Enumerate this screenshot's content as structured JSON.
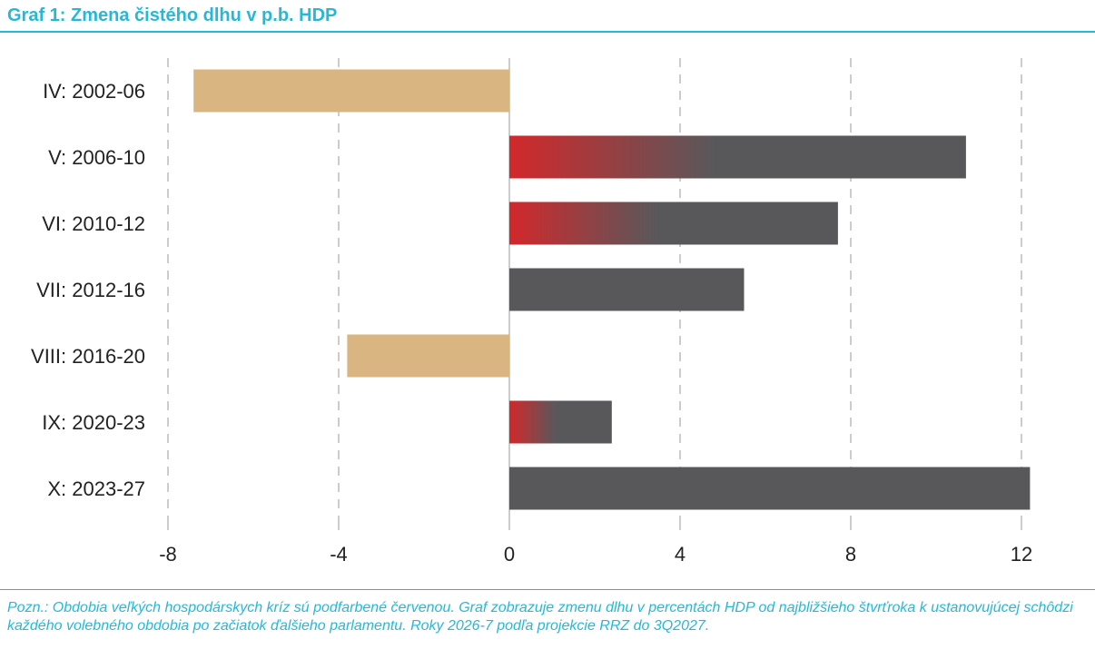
{
  "title": "Graf 1: Zmena čistého dlhu v p.b. HDP",
  "note": "Pozn.: Obdobia veľkých hospodárskych kríz sú podfarbené červenou. Graf zobrazuje zmenu dlhu v percentách HDP od najbližšieho štvrťroka k ustanovujúcej schôdzi každého volebného obdobia po začiatok ďalšieho parlamentu. Roky 2026-7 podľa projekcie RRZ do 3Q2027.",
  "colors": {
    "accent": "#26b8d6",
    "positive": "#58585b",
    "negative": "#d9b581",
    "crisis": "#d2282b",
    "grid": "#cccccc"
  },
  "chart_data": {
    "type": "bar",
    "orientation": "horizontal",
    "title": "Graf 1: Zmena čistého dlhu v p.b. HDP",
    "categories": [
      "IV: 2002-06",
      "V: 2006-10",
      "VI: 2010-12",
      "VII: 2012-16",
      "VIII: 2016-20",
      "IX: 2020-23",
      "X: 2023-27"
    ],
    "values": [
      -7.4,
      10.7,
      7.7,
      5.5,
      -3.8,
      2.4,
      12.2
    ],
    "crisis": [
      false,
      true,
      true,
      false,
      false,
      true,
      false
    ],
    "xlim": [
      -8,
      13
    ],
    "xticks": [
      -8,
      -4,
      0,
      4,
      8,
      12
    ],
    "grid": "vertical-dashed"
  }
}
